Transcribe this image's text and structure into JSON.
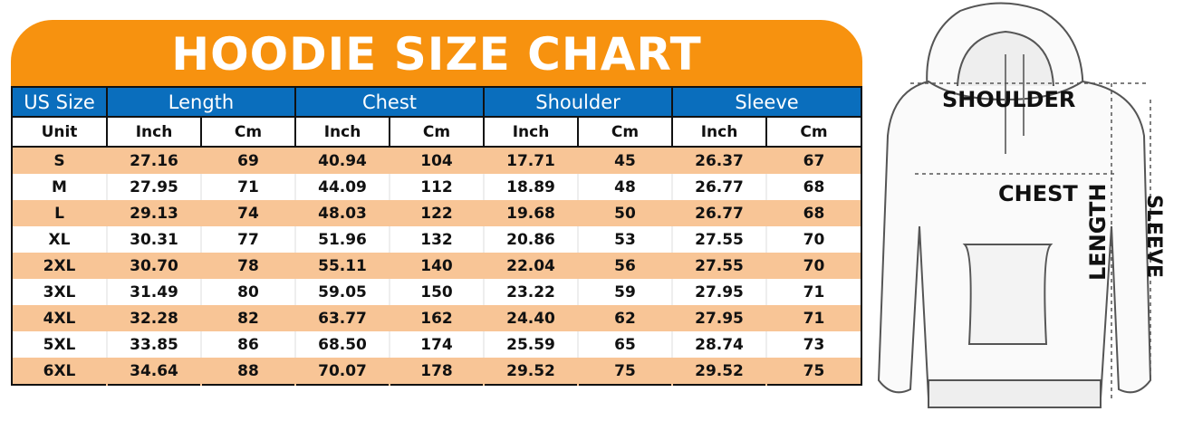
{
  "title": "HOODIE SIZE CHART",
  "header": {
    "size_label": "US Size",
    "groups": [
      "Length",
      "Chest",
      "Shoulder",
      "Sleeve"
    ],
    "unit_label": "Unit",
    "units": [
      "Inch",
      "Cm",
      "Inch",
      "Cm",
      "Inch",
      "Cm",
      "Inch",
      "Cm"
    ]
  },
  "rows": [
    [
      "S",
      "27.16",
      "69",
      "40.94",
      "104",
      "17.71",
      "45",
      "26.37",
      "67"
    ],
    [
      "M",
      "27.95",
      "71",
      "44.09",
      "112",
      "18.89",
      "48",
      "26.77",
      "68"
    ],
    [
      "L",
      "29.13",
      "74",
      "48.03",
      "122",
      "19.68",
      "50",
      "26.77",
      "68"
    ],
    [
      "XL",
      "30.31",
      "77",
      "51.96",
      "132",
      "20.86",
      "53",
      "27.55",
      "70"
    ],
    [
      "2XL",
      "30.70",
      "78",
      "55.11",
      "140",
      "22.04",
      "56",
      "27.55",
      "70"
    ],
    [
      "3XL",
      "31.49",
      "80",
      "59.05",
      "150",
      "23.22",
      "59",
      "27.95",
      "71"
    ],
    [
      "4XL",
      "32.28",
      "82",
      "63.77",
      "162",
      "24.40",
      "62",
      "27.95",
      "71"
    ],
    [
      "5XL",
      "33.85",
      "86",
      "68.50",
      "174",
      "25.59",
      "65",
      "28.74",
      "73"
    ],
    [
      "6XL",
      "34.64",
      "88",
      "70.07",
      "178",
      "29.52",
      "75",
      "29.52",
      "75"
    ]
  ],
  "diagram": {
    "shoulder": "SHOULDER",
    "chest": "CHEST",
    "length": "LENGTH",
    "sleeve": "SLEEVE"
  },
  "colors": {
    "banner": "#f7920f",
    "header": "#0a6ebd",
    "stripe": "#f8c596"
  }
}
